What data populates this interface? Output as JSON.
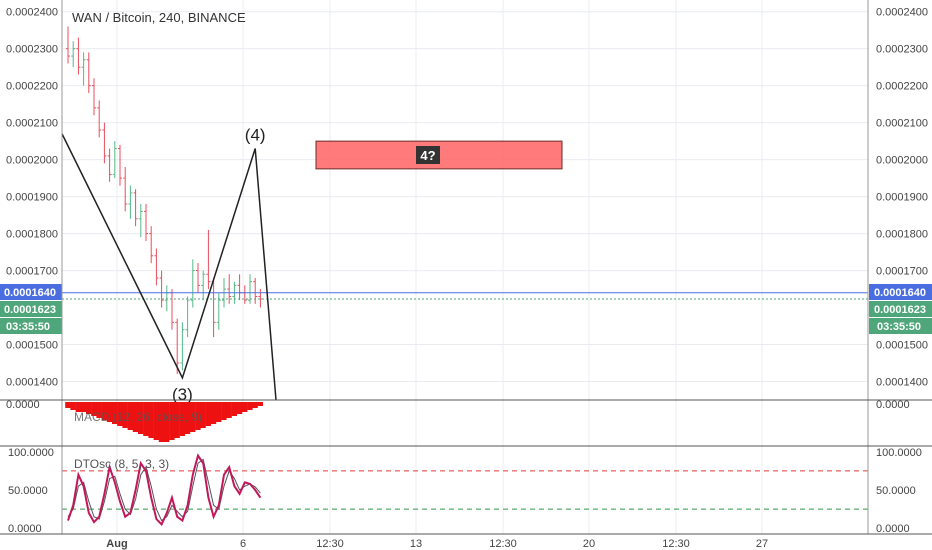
{
  "symbol_title": "WAN / Bitcoin, 240, BINANCE",
  "price_ticks": [
    "0.0002400",
    "0.0002300",
    "0.0002200",
    "0.0002100",
    "0.0002000",
    "0.0001900",
    "0.0001800",
    "0.0001700",
    "0.0001500",
    "0.0001400"
  ],
  "badges": {
    "blue_price": "0.0001640",
    "green_price": "0.0001623",
    "countdown": "03:35:50"
  },
  "wave_labels": {
    "wave3": "(3)",
    "wave4": "(4)"
  },
  "target_box_label": "4?",
  "macd": {
    "label": "MACD (12, 26, close, 9)",
    "tick": "0.0000"
  },
  "dtosc": {
    "label": "DTOsc (8, 5, 3, 3)",
    "ticks": [
      "100.0000",
      "50.0000",
      "0.0000"
    ]
  },
  "time_ticks": [
    "Aug",
    "6",
    "12:30",
    "13",
    "12:30",
    "20",
    "12:30",
    "27"
  ],
  "colors": {
    "up_candle": "#53b987",
    "down_candle": "#eb4d5c",
    "last_price_line": "#4a6ee0",
    "green_badge": "#4fa67a",
    "box_fill": "#ff6b6b",
    "macd_hist": "#ee1111",
    "osc_fast": "#c2185b",
    "osc_slow": "#555555",
    "upper_band": "#e23b3b",
    "lower_band": "#2f9a4a"
  },
  "chart_data": {
    "type": "candlestick",
    "title": "WAN / Bitcoin, 240, BINANCE",
    "price_ylim": [
      0.000135,
      0.000241
    ],
    "last_price": 0.0001623,
    "blue_line_price": 0.000164,
    "candles": [
      [
        0.00023,
        0.000236,
        0.000226,
        0.000228
      ],
      [
        0.000228,
        0.000232,
        0.000225,
        0.00023
      ],
      [
        0.00023,
        0.000233,
        0.000223,
        0.000225
      ],
      [
        0.000225,
        0.000229,
        0.00022,
        0.000227
      ],
      [
        0.000227,
        0.000229,
        0.000218,
        0.00022
      ],
      [
        0.00022,
        0.000222,
        0.000212,
        0.000214
      ],
      [
        0.000214,
        0.000216,
        0.000206,
        0.000208
      ],
      [
        0.000208,
        0.00021,
        0.000199,
        0.000201
      ],
      [
        0.000201,
        0.000203,
        0.000194,
        0.000196
      ],
      [
        0.000196,
        0.000205,
        0.000195,
        0.000203
      ],
      [
        0.000203,
        0.000204,
        0.000193,
        0.000195
      ],
      [
        0.000195,
        0.000198,
        0.000186,
        0.000188
      ],
      [
        0.000188,
        0.000193,
        0.000184,
        0.000191
      ],
      [
        0.000191,
        0.000192,
        0.000182,
        0.000184
      ],
      [
        0.000184,
        0.000188,
        0.000179,
        0.000186
      ],
      [
        0.000186,
        0.000188,
        0.000178,
        0.00018
      ],
      [
        0.00018,
        0.000182,
        0.000172,
        0.000174
      ],
      [
        0.000174,
        0.000176,
        0.000166,
        0.000168
      ],
      [
        0.000168,
        0.00017,
        0.00016,
        0.000162
      ],
      [
        0.000162,
        0.000166,
        0.000159,
        0.000164
      ],
      [
        0.000164,
        0.000165,
        0.000154,
        0.000156
      ],
      [
        0.000156,
        0.000157,
        0.000142,
        0.000145
      ],
      [
        0.000145,
        0.000156,
        0.000143,
        0.000154
      ],
      [
        0.000154,
        0.000163,
        0.000152,
        0.000162
      ],
      [
        0.000162,
        0.000173,
        0.00016,
        0.00017
      ],
      [
        0.00017,
        0.000172,
        0.000164,
        0.000166
      ],
      [
        0.000166,
        0.00017,
        0.000162,
        0.000169
      ],
      [
        0.000169,
        0.000181,
        0.000165,
        0.000167
      ],
      [
        0.000167,
        0.000168,
        0.000152,
        0.000156
      ],
      [
        0.000156,
        0.000164,
        0.000154,
        0.000162
      ],
      [
        0.000162,
        0.000168,
        0.00016,
        0.000165
      ],
      [
        0.000165,
        0.000169,
        0.000161,
        0.000163
      ],
      [
        0.000163,
        0.000167,
        0.000161,
        0.000166
      ],
      [
        0.000166,
        0.000169,
        0.000162,
        0.000164
      ],
      [
        0.000164,
        0.000166,
        0.000161,
        0.000162
      ],
      [
        0.000162,
        0.000169,
        0.000161,
        0.000167
      ],
      [
        0.000167,
        0.000168,
        0.000161,
        0.000163
      ],
      [
        0.000163,
        0.000165,
        0.00016,
        0.0001623
      ]
    ],
    "target_box": {
      "price_top": 0.000205,
      "price_bottom": 0.0001975
    },
    "wave_path": [
      {
        "x": 0,
        "y": 0.000207
      },
      {
        "x": 22,
        "y": 0.000141
      },
      {
        "x": 36,
        "y": 0.000203
      },
      {
        "x": 40,
        "y": 0.000135
      }
    ],
    "macd_histogram": [
      -0.3,
      -0.4,
      -0.5,
      -0.5,
      -0.6,
      -0.7,
      -0.8,
      -0.9,
      -1.0,
      -1.1,
      -1.2,
      -1.3,
      -1.4,
      -1.5,
      -1.6,
      -1.7,
      -1.8,
      -1.9,
      -2.0,
      -2.0,
      -1.9,
      -1.8,
      -1.7,
      -1.6,
      -1.5,
      -1.4,
      -1.3,
      -1.2,
      -1.1,
      -1.0,
      -0.9,
      -0.8,
      -0.7,
      -0.6,
      -0.5,
      -0.4,
      -0.3,
      -0.2
    ],
    "osc_ylim": [
      -5,
      105
    ],
    "osc_upper_band": 75,
    "osc_lower_band": 25,
    "osc_fast": [
      10,
      30,
      70,
      55,
      20,
      8,
      15,
      45,
      80,
      60,
      35,
      15,
      20,
      50,
      85,
      75,
      40,
      12,
      5,
      20,
      40,
      15,
      10,
      30,
      70,
      95,
      85,
      40,
      15,
      30,
      70,
      80,
      55,
      45,
      60,
      58,
      50,
      40
    ],
    "osc_slow": [
      15,
      25,
      55,
      60,
      35,
      15,
      12,
      35,
      65,
      68,
      45,
      25,
      18,
      38,
      70,
      80,
      55,
      25,
      10,
      15,
      30,
      22,
      15,
      22,
      55,
      85,
      90,
      60,
      30,
      25,
      55,
      75,
      65,
      50,
      55,
      58,
      54,
      46
    ]
  }
}
